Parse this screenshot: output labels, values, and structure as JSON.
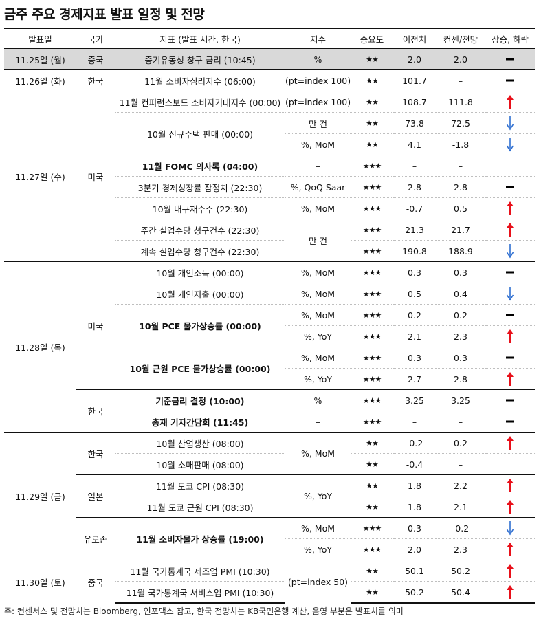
{
  "title": "금주 주요 경제지표 발표 일정 및 전망",
  "headers": [
    "발표일",
    "국가",
    "지표 (발표 시간, 한국)",
    "지수",
    "중요도",
    "이전치",
    "컨센/전망",
    "상승, 하락"
  ],
  "dates": [
    "11.25일 (월)",
    "11.26일 (화)",
    "11.27일 (수)",
    "11.28일 (목)",
    "11.29일 (금)",
    "11.30일 (토)"
  ],
  "countries": {
    "china": "중국",
    "korea": "한국",
    "us": "미국",
    "japan": "일본",
    "euro": "유로존"
  },
  "units": {
    "pct": "%",
    "pt100": "(pt=index 100)",
    "pt50": "(pt=index 50)",
    "mangun": "만 건",
    "mom": "%, MoM",
    "yoy": "%, YoY",
    "qoq": "%, QoQ Saar",
    "dash": "–"
  },
  "rows": [
    {
      "indicator": "중기유동성 창구 금리 (10:45)",
      "stars": "★★",
      "prev": "2.0",
      "cons": "2.0",
      "dir": "flat"
    },
    {
      "indicator": "11월 소비자심리지수 (06:00)",
      "stars": "★★",
      "prev": "101.7",
      "cons": "–",
      "dir": "flat"
    },
    {
      "indicator": "11월 컨퍼런스보드 소비자기대지수 (00:00)",
      "stars": "★★",
      "prev": "108.7",
      "cons": "111.8",
      "dir": "up"
    },
    {
      "indicator": "10월 신규주택 판매 (00:00)",
      "stars": "★★",
      "prev": "73.8",
      "cons": "72.5",
      "dir": "down"
    },
    {
      "stars": "★★",
      "prev": "4.1",
      "cons": "-1.8",
      "dir": "down"
    },
    {
      "indicator": "11월 FOMC 의사록 (04:00)",
      "stars": "★★★",
      "prev": "–",
      "cons": "–",
      "dir": "none"
    },
    {
      "indicator": "3분기 경제성장률 잠정치 (22:30)",
      "stars": "★★★",
      "prev": "2.8",
      "cons": "2.8",
      "dir": "flat"
    },
    {
      "indicator": "10월 내구재수주 (22:30)",
      "stars": "★★★",
      "prev": "-0.7",
      "cons": "0.5",
      "dir": "up"
    },
    {
      "indicator": "주간 실업수당 청구건수 (22:30)",
      "stars": "★★★",
      "prev": "21.3",
      "cons": "21.7",
      "dir": "up"
    },
    {
      "indicator": "계속 실업수당 청구건수 (22:30)",
      "stars": "★★★",
      "prev": "190.8",
      "cons": "188.9",
      "dir": "down"
    },
    {
      "indicator": "10월 개인소득 (00:00)",
      "stars": "★★★",
      "prev": "0.3",
      "cons": "0.3",
      "dir": "flat"
    },
    {
      "indicator": "10월 개인지출 (00:00)",
      "stars": "★★★",
      "prev": "0.5",
      "cons": "0.4",
      "dir": "down"
    },
    {
      "indicator": "10월 PCE 물가상승률 (00:00)",
      "stars": "★★★",
      "prev": "0.2",
      "cons": "0.2",
      "dir": "flat"
    },
    {
      "stars": "★★★",
      "prev": "2.1",
      "cons": "2.3",
      "dir": "up"
    },
    {
      "indicator": "10월 근원 PCE 물가상승률 (00:00)",
      "stars": "★★★",
      "prev": "0.3",
      "cons": "0.3",
      "dir": "flat"
    },
    {
      "stars": "★★★",
      "prev": "2.7",
      "cons": "2.8",
      "dir": "up"
    },
    {
      "indicator": "기준금리 결정 (10:00)",
      "stars": "★★★",
      "prev": "3.25",
      "cons": "3.25",
      "dir": "flat"
    },
    {
      "indicator": "총재 기자간담회 (11:45)",
      "stars": "★★★",
      "prev": "–",
      "cons": "–",
      "dir": "flat"
    },
    {
      "indicator": "10월 산업생산 (08:00)",
      "stars": "★★",
      "prev": "-0.2",
      "cons": "0.2",
      "dir": "up"
    },
    {
      "indicator": "10월 소매판매 (08:00)",
      "stars": "★★",
      "prev": "-0.4",
      "cons": "–",
      "dir": "none"
    },
    {
      "indicator": "11월 도쿄 CPI (08:30)",
      "stars": "★★",
      "prev": "1.8",
      "cons": "2.2",
      "dir": "up"
    },
    {
      "indicator": "11월 도쿄 근원 CPI (08:30)",
      "stars": "★★",
      "prev": "1.8",
      "cons": "2.1",
      "dir": "up"
    },
    {
      "indicator": "11월 소비자물가 상승률 (19:00)",
      "stars": "★★★",
      "prev": "0.3",
      "cons": "-0.2",
      "dir": "down"
    },
    {
      "stars": "★★★",
      "prev": "2.0",
      "cons": "2.3",
      "dir": "up"
    },
    {
      "indicator": "11월 국가통계국 제조업 PMI (10:30)",
      "stars": "★★",
      "prev": "50.1",
      "cons": "50.2",
      "dir": "up"
    },
    {
      "indicator": "11월 국가통계국 서비스업 PMI (10:30)",
      "stars": "★★",
      "prev": "50.2",
      "cons": "50.4",
      "dir": "up"
    }
  ],
  "colors": {
    "up": "#e8101a",
    "down": "#2f6fd1",
    "flat": "#000000",
    "shade": "#d9d9d9"
  },
  "footnote": "주: 컨센서스 및 전망치는 Bloomberg, 인포맥스 참고, 한국 전망치는 KB국민은행 계산, 음영 부분은 발표치를 의미"
}
